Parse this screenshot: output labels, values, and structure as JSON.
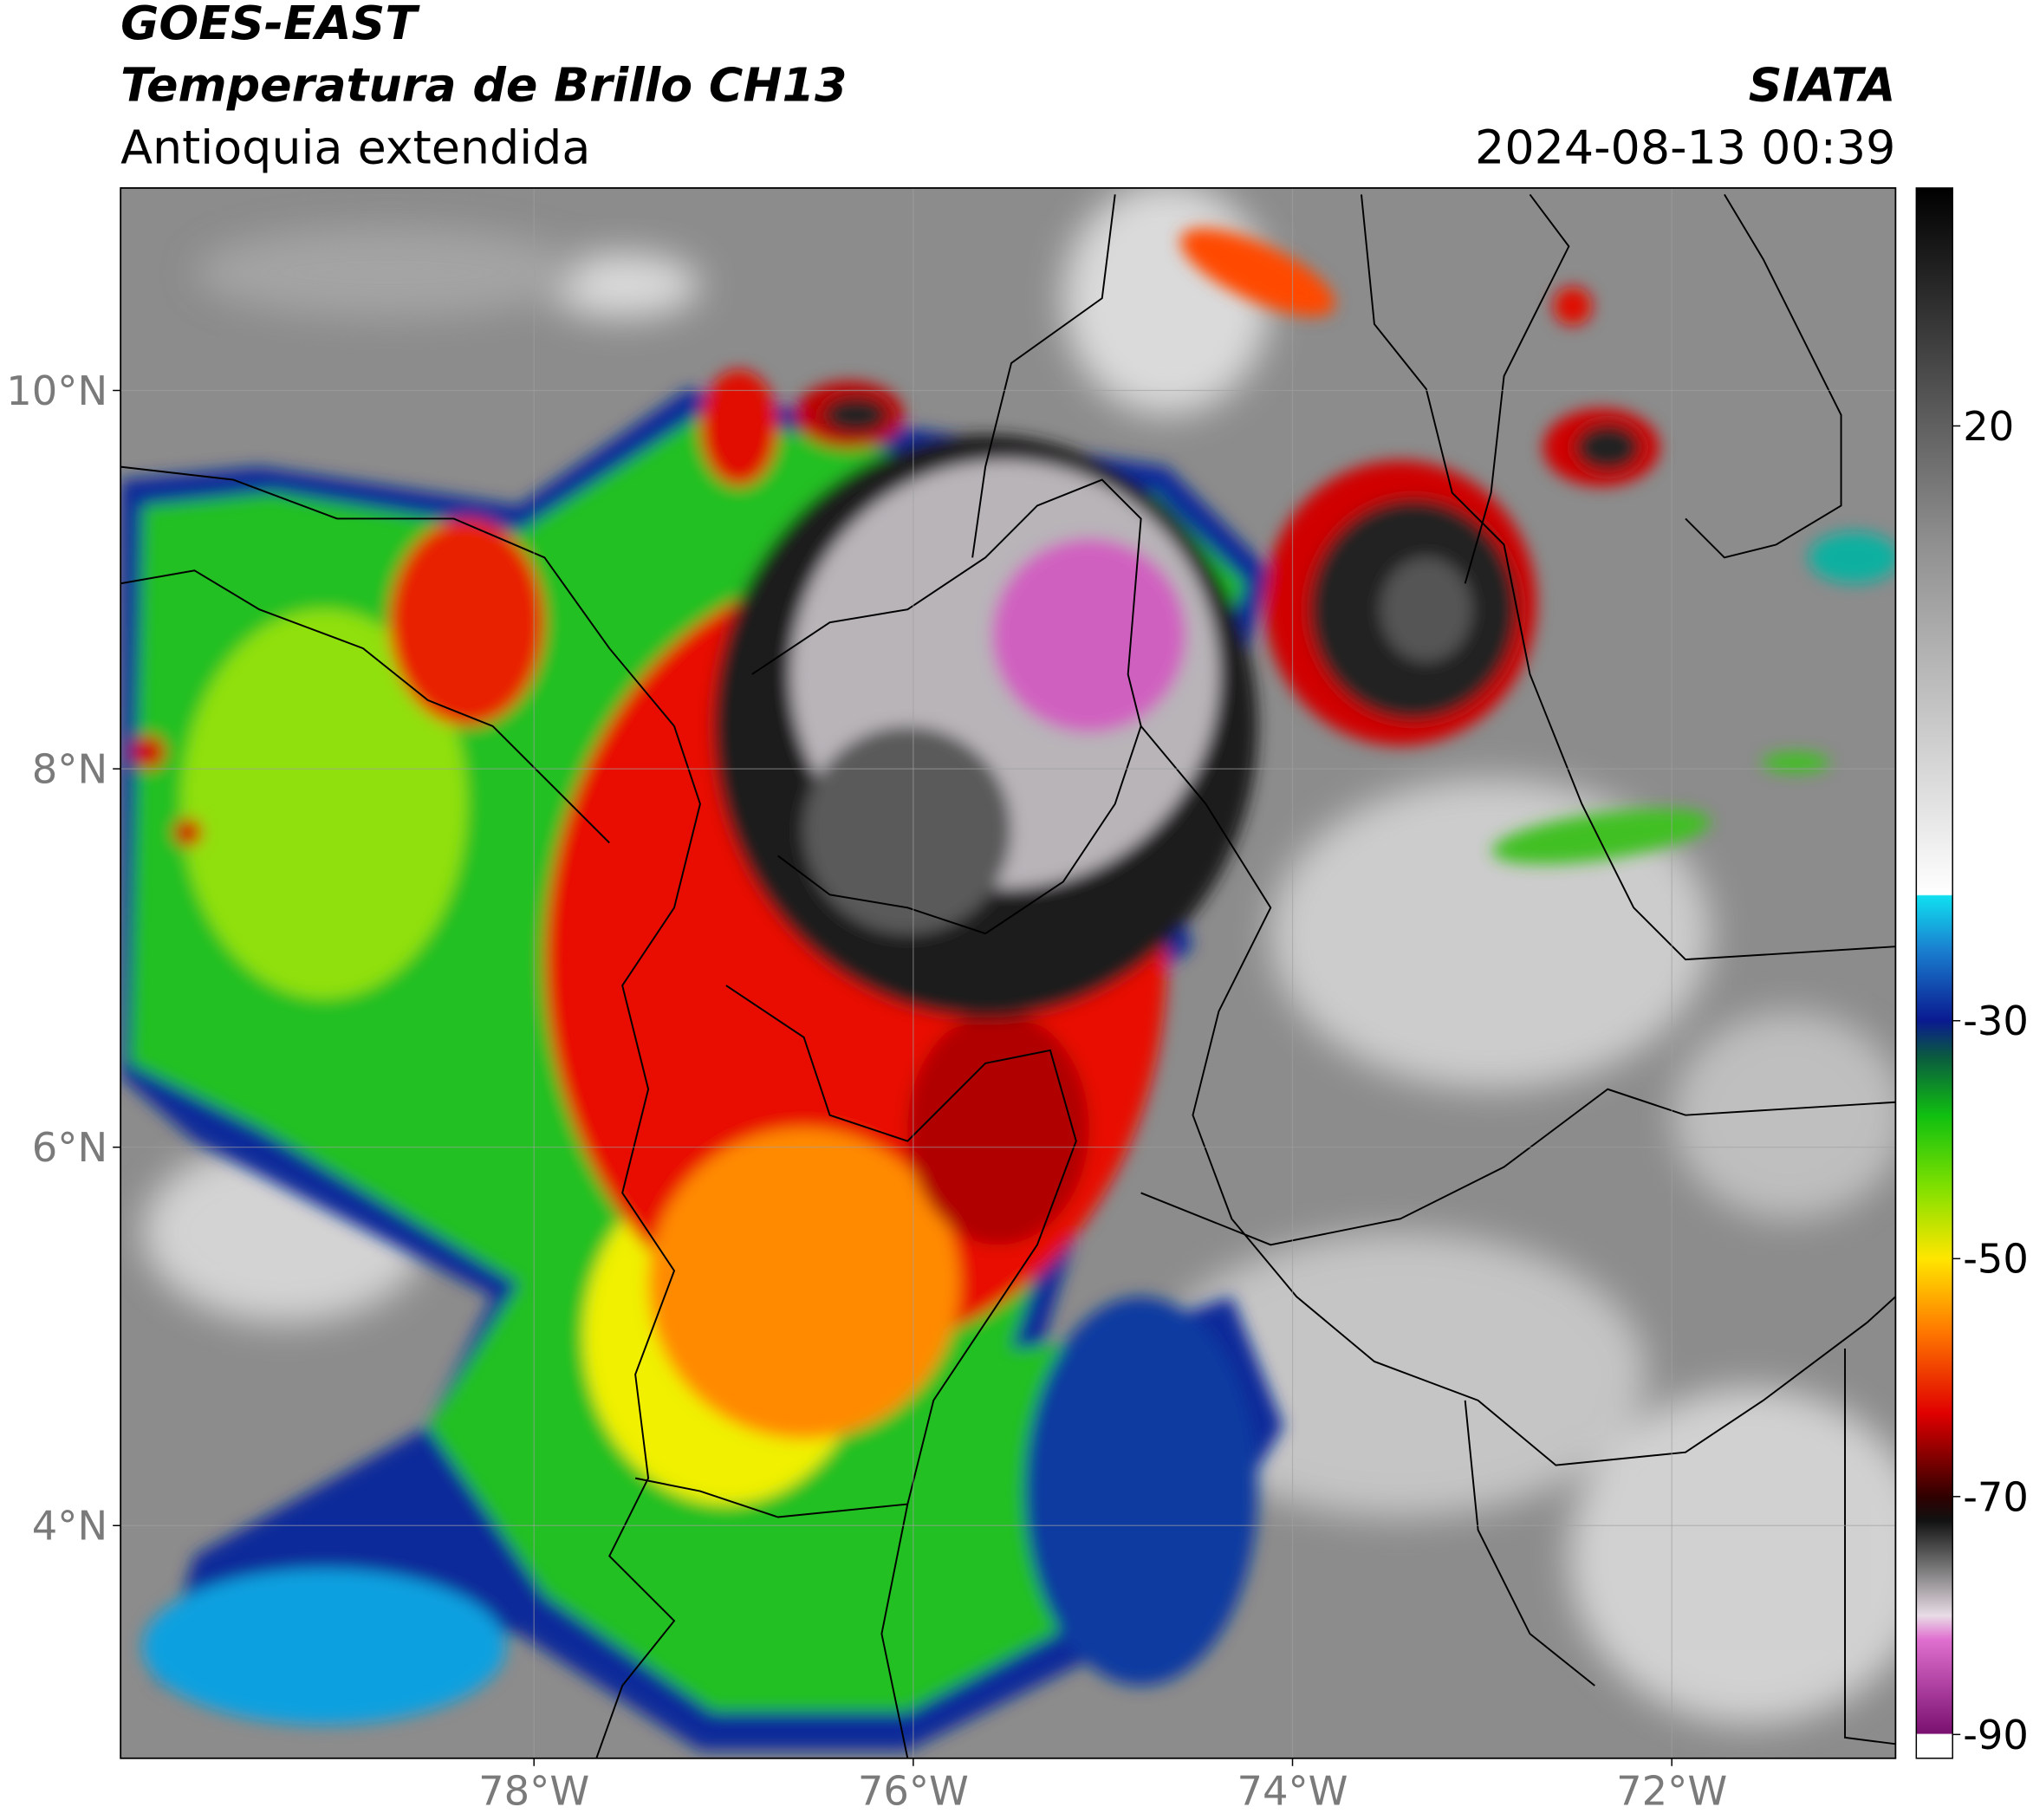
{
  "map_data": {
    "title": "GOES-EAST",
    "subtitle": "Temperatura de Brillo CH13",
    "region": "Antioquia extendida",
    "source": "SIATA",
    "timestamp": "2024-08-13 00:39",
    "xlim": [
      -80.18,
      -70.82
    ],
    "ylim": [
      2.77,
      11.07
    ],
    "xticks": [
      {
        "value": -78,
        "label": "78°W"
      },
      {
        "value": -76,
        "label": "76°W"
      },
      {
        "value": -74,
        "label": "74°W"
      },
      {
        "value": -72,
        "label": "72°W"
      }
    ],
    "yticks": [
      {
        "value": 4,
        "label": "4°N"
      },
      {
        "value": 6,
        "label": "6°N"
      },
      {
        "value": 8,
        "label": "8°N"
      },
      {
        "value": 10,
        "label": "10°N"
      }
    ],
    "grid": true,
    "colorbar": {
      "clim": [
        -92,
        40
      ],
      "ticks": [
        20,
        -30,
        -50,
        -70,
        -90
      ],
      "colormap": [
        {
          "value": -92,
          "color": "#ffffff"
        },
        {
          "value": -90,
          "color": "#ffffff"
        },
        {
          "value": -89.9,
          "color": "#7a1070"
        },
        {
          "value": -82,
          "color": "#e070d0"
        },
        {
          "value": -80,
          "color": "#e8dce6"
        },
        {
          "value": -76,
          "color": "#777777"
        },
        {
          "value": -72,
          "color": "#111111"
        },
        {
          "value": -70,
          "color": "#300000"
        },
        {
          "value": -63,
          "color": "#e00000"
        },
        {
          "value": -56,
          "color": "#ff7a00"
        },
        {
          "value": -50,
          "color": "#ffe600"
        },
        {
          "value": -44,
          "color": "#80e000"
        },
        {
          "value": -38,
          "color": "#10c010"
        },
        {
          "value": -33,
          "color": "#0a5a40"
        },
        {
          "value": -30,
          "color": "#0a1a90"
        },
        {
          "value": -24,
          "color": "#1a80d0"
        },
        {
          "value": -19.5,
          "color": "#10e0f0"
        },
        {
          "value": -19.4,
          "color": "#ffffff"
        },
        {
          "value": 10,
          "color": "#909090"
        },
        {
          "value": 40,
          "color": "#000000"
        }
      ]
    }
  }
}
